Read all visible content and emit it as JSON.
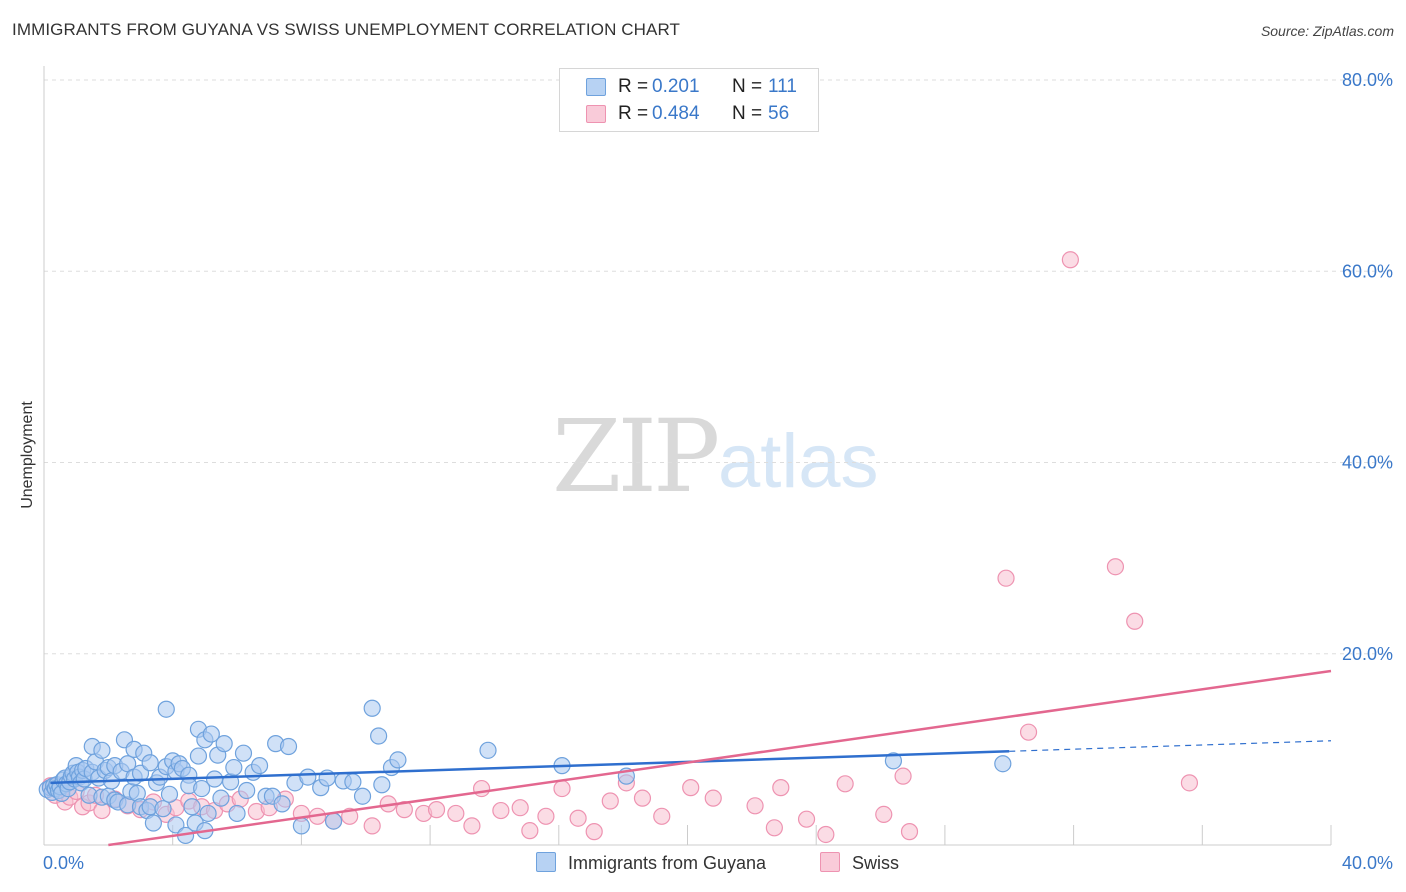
{
  "title": "IMMIGRANTS FROM GUYANA VS SWISS UNEMPLOYMENT CORRELATION CHART",
  "source": "Source: ZipAtlas.com",
  "watermark": {
    "zip": "ZIP",
    "atlas": "atlas"
  },
  "colors": {
    "blue_fill": "#a9c8f0",
    "blue_stroke": "#6fa2dd",
    "blue_line": "#2f6fce",
    "pink_fill": "#f7bfd0",
    "pink_stroke": "#ee93b1",
    "pink_line": "#e3678f",
    "grid": "#dddddd",
    "tick_text": "#3a78c9"
  },
  "legend": {
    "entries": [
      {
        "r_label": "R =",
        "r_value": "0.201",
        "n_label": "N =",
        "n_value": "111"
      },
      {
        "r_label": "R =",
        "r_value": "0.484",
        "n_label": "N =",
        "n_value": "56"
      }
    ]
  },
  "bottom_legend": [
    "Immigrants from Guyana",
    "Swiss"
  ],
  "chart_data": {
    "type": "scatter",
    "title": "IMMIGRANTS FROM GUYANA VS SWISS UNEMPLOYMENT CORRELATION CHART",
    "xlabel": "",
    "ylabel": "Unemployment",
    "xlim": [
      0,
      40
    ],
    "ylim": [
      0,
      80
    ],
    "x_tick_labels": [
      "0.0%",
      "40.0%"
    ],
    "y_ticks": [
      20,
      40,
      60,
      80
    ],
    "y_tick_labels": [
      "20.0%",
      "40.0%",
      "60.0%",
      "80.0%"
    ],
    "grid": true,
    "series": [
      {
        "name": "Immigrants from Guyana",
        "r": 0.201,
        "n": 111,
        "trend": {
          "x0": 0.2,
          "y0": 6.5,
          "x1": 30.0,
          "y1": 9.8,
          "dash_to_x": 40.0,
          "dash_to_y": 10.9
        },
        "points": [
          [
            0.1,
            5.8
          ],
          [
            0.2,
            6.0
          ],
          [
            0.25,
            5.5
          ],
          [
            0.3,
            6.2
          ],
          [
            0.35,
            5.9
          ],
          [
            0.4,
            6.3
          ],
          [
            0.45,
            5.7
          ],
          [
            0.5,
            6.1
          ],
          [
            0.55,
            5.4
          ],
          [
            0.6,
            6.8
          ],
          [
            0.65,
            7.0
          ],
          [
            0.7,
            6.4
          ],
          [
            0.75,
            5.9
          ],
          [
            0.8,
            6.6
          ],
          [
            0.85,
            7.2
          ],
          [
            0.9,
            7.5
          ],
          [
            0.95,
            6.9
          ],
          [
            1.0,
            8.3
          ],
          [
            1.05,
            7.6
          ],
          [
            1.1,
            7.1
          ],
          [
            1.15,
            6.5
          ],
          [
            1.2,
            7.8
          ],
          [
            1.25,
            6.9
          ],
          [
            1.3,
            8.0
          ],
          [
            1.4,
            5.2
          ],
          [
            1.5,
            10.3
          ],
          [
            1.5,
            7.6
          ],
          [
            1.6,
            8.7
          ],
          [
            1.7,
            7.0
          ],
          [
            1.8,
            5.0
          ],
          [
            1.8,
            9.9
          ],
          [
            1.9,
            7.8
          ],
          [
            2.0,
            8.1
          ],
          [
            2.0,
            5.1
          ],
          [
            2.1,
            6.7
          ],
          [
            2.2,
            8.3
          ],
          [
            2.2,
            4.7
          ],
          [
            2.3,
            4.5
          ],
          [
            2.4,
            7.7
          ],
          [
            2.5,
            11.0
          ],
          [
            2.6,
            8.5
          ],
          [
            2.6,
            4.2
          ],
          [
            2.7,
            5.6
          ],
          [
            2.8,
            10.0
          ],
          [
            2.8,
            7.1
          ],
          [
            2.9,
            5.4
          ],
          [
            3.0,
            7.5
          ],
          [
            3.0,
            4.0
          ],
          [
            3.1,
            9.6
          ],
          [
            3.2,
            3.6
          ],
          [
            3.3,
            8.6
          ],
          [
            3.3,
            4.0
          ],
          [
            3.4,
            2.3
          ],
          [
            3.5,
            6.5
          ],
          [
            3.6,
            7.1
          ],
          [
            3.7,
            3.8
          ],
          [
            3.8,
            8.2
          ],
          [
            3.8,
            14.2
          ],
          [
            3.9,
            5.3
          ],
          [
            4.0,
            8.8
          ],
          [
            4.1,
            2.1
          ],
          [
            4.1,
            7.7
          ],
          [
            4.2,
            8.5
          ],
          [
            4.3,
            8.0
          ],
          [
            4.4,
            1.0
          ],
          [
            4.5,
            7.3
          ],
          [
            4.5,
            6.2
          ],
          [
            4.6,
            4.0
          ],
          [
            4.7,
            2.3
          ],
          [
            4.8,
            9.3
          ],
          [
            4.8,
            12.1
          ],
          [
            4.9,
            5.9
          ],
          [
            5.0,
            1.5
          ],
          [
            5.0,
            11.0
          ],
          [
            5.1,
            3.3
          ],
          [
            5.2,
            11.6
          ],
          [
            5.3,
            6.9
          ],
          [
            5.4,
            9.4
          ],
          [
            5.5,
            4.9
          ],
          [
            5.6,
            10.6
          ],
          [
            5.8,
            6.6
          ],
          [
            5.9,
            8.1
          ],
          [
            6.0,
            3.3
          ],
          [
            6.2,
            9.6
          ],
          [
            6.3,
            5.7
          ],
          [
            6.5,
            7.6
          ],
          [
            6.7,
            8.3
          ],
          [
            6.9,
            5.1
          ],
          [
            7.1,
            5.1
          ],
          [
            7.2,
            10.6
          ],
          [
            7.4,
            4.3
          ],
          [
            7.6,
            10.3
          ],
          [
            7.8,
            6.5
          ],
          [
            8.0,
            2.0
          ],
          [
            8.2,
            7.1
          ],
          [
            8.6,
            6.0
          ],
          [
            8.8,
            7.0
          ],
          [
            9.0,
            2.5
          ],
          [
            9.3,
            6.7
          ],
          [
            9.6,
            6.6
          ],
          [
            9.9,
            5.1
          ],
          [
            10.4,
            11.4
          ],
          [
            10.5,
            6.3
          ],
          [
            10.8,
            8.1
          ],
          [
            11.0,
            8.9
          ],
          [
            10.2,
            14.3
          ],
          [
            13.8,
            9.9
          ],
          [
            16.1,
            8.3
          ],
          [
            18.1,
            7.2
          ],
          [
            26.4,
            8.8
          ],
          [
            29.8,
            8.5
          ]
        ]
      },
      {
        "name": "Swiss",
        "r": 0.484,
        "n": 56,
        "trend": {
          "x0": 2.0,
          "y0": 0.0,
          "x1": 40.0,
          "y1": 18.2
        },
        "points": [
          [
            0.2,
            6.2
          ],
          [
            0.35,
            5.2
          ],
          [
            0.5,
            6.0
          ],
          [
            0.65,
            4.5
          ],
          [
            0.8,
            5.0
          ],
          [
            1.0,
            5.6
          ],
          [
            1.2,
            4.0
          ],
          [
            1.4,
            4.4
          ],
          [
            1.6,
            5.2
          ],
          [
            1.8,
            3.6
          ],
          [
            2.2,
            4.8
          ],
          [
            2.6,
            4.1
          ],
          [
            3.0,
            3.7
          ],
          [
            3.4,
            4.5
          ],
          [
            3.8,
            3.2
          ],
          [
            4.1,
            3.9
          ],
          [
            4.5,
            4.6
          ],
          [
            4.9,
            4.0
          ],
          [
            5.3,
            3.6
          ],
          [
            5.7,
            4.3
          ],
          [
            6.1,
            4.8
          ],
          [
            6.6,
            3.5
          ],
          [
            7.0,
            3.9
          ],
          [
            7.5,
            4.8
          ],
          [
            8.0,
            3.3
          ],
          [
            8.5,
            3.0
          ],
          [
            9.0,
            2.5
          ],
          [
            9.5,
            3.0
          ],
          [
            10.2,
            2.0
          ],
          [
            10.7,
            4.3
          ],
          [
            11.2,
            3.7
          ],
          [
            11.8,
            3.3
          ],
          [
            12.2,
            3.7
          ],
          [
            12.8,
            3.3
          ],
          [
            13.3,
            2.0
          ],
          [
            13.6,
            5.9
          ],
          [
            14.2,
            3.6
          ],
          [
            14.8,
            3.9
          ],
          [
            15.1,
            1.5
          ],
          [
            15.6,
            3.0
          ],
          [
            16.1,
            5.9
          ],
          [
            16.6,
            2.8
          ],
          [
            17.1,
            1.4
          ],
          [
            17.6,
            4.6
          ],
          [
            18.1,
            6.5
          ],
          [
            18.6,
            4.9
          ],
          [
            19.2,
            3.0
          ],
          [
            20.1,
            6.0
          ],
          [
            20.8,
            4.9
          ],
          [
            22.1,
            4.1
          ],
          [
            22.7,
            1.8
          ],
          [
            22.9,
            6.0
          ],
          [
            23.7,
            2.7
          ],
          [
            24.3,
            1.1
          ],
          [
            24.9,
            6.4
          ],
          [
            26.1,
            3.2
          ]
        ]
      },
      {
        "name": "Swiss (outliers)",
        "points": [
          [
            26.7,
            7.2
          ],
          [
            26.9,
            1.4
          ],
          [
            29.9,
            27.9
          ],
          [
            30.6,
            11.8
          ],
          [
            31.9,
            61.2
          ],
          [
            33.3,
            29.1
          ],
          [
            33.9,
            23.4
          ],
          [
            35.6,
            6.5
          ]
        ]
      }
    ]
  }
}
